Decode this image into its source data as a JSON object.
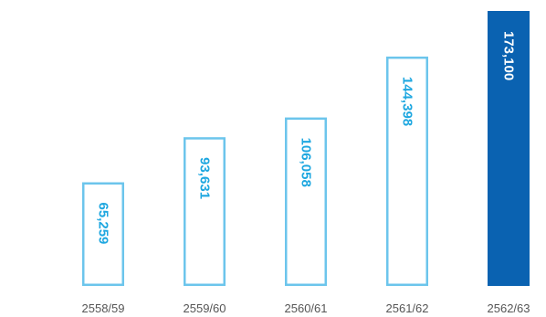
{
  "chart_data": {
    "type": "bar",
    "categories": [
      "2558/59",
      "2559/60",
      "2560/61",
      "2561/62",
      "2562/63"
    ],
    "values": [
      65259,
      93631,
      106058,
      144398,
      173100
    ],
    "value_labels": [
      "65,259",
      "93,631",
      "106,058",
      "144,398",
      "173,100"
    ],
    "highlight_index": 4,
    "title": "",
    "xlabel": "",
    "ylabel": "",
    "ylim": [
      0,
      173100
    ],
    "grid": false,
    "legend": "none",
    "colors": {
      "outline": "#6cc5ec",
      "label": "#1ea7e0",
      "highlight_fill": "#0a62b1",
      "highlight_label": "#ffffff",
      "category_text": "#555555"
    }
  }
}
